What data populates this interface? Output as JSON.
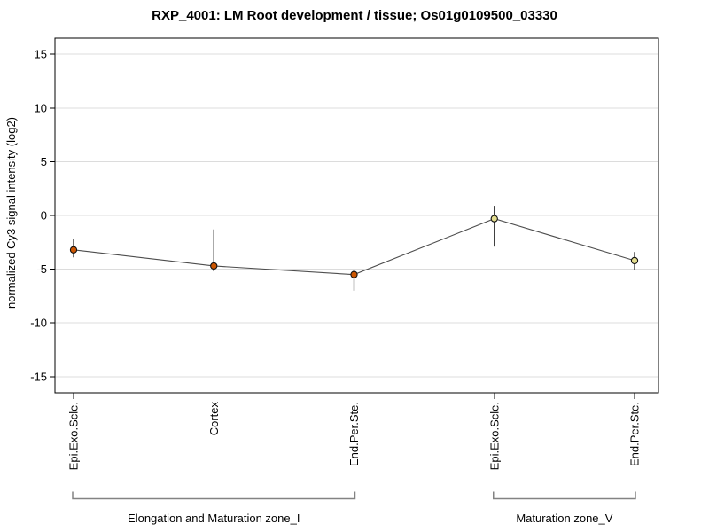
{
  "chart_data": {
    "type": "line",
    "title": "RXP_4001: LM Root development / tissue; Os01g0109500_03330",
    "ylabel": "normalized Cy3 signal intensity (log2)",
    "xlabel": "",
    "ylim": [
      -16.5,
      16.5
    ],
    "yticks": [
      15,
      10,
      5,
      0,
      -5,
      -10,
      -15
    ],
    "grid": true,
    "legend_position": "none",
    "categories": [
      "Epi.Exo.Scle.",
      "Cortex",
      "End.Per.Ste.",
      "Epi.Exo.Scle.",
      "End.Per.Ste."
    ],
    "series": [
      {
        "name": "Cy3 signal intensity",
        "values": [
          -3.2,
          -4.7,
          -5.5,
          -0.3,
          -4.2
        ],
        "err_low": [
          -3.9,
          -5.2,
          -7.0,
          -2.9,
          -5.1
        ],
        "err_high": [
          -2.2,
          -1.3,
          -5.1,
          0.9,
          -3.4
        ],
        "point_colors": [
          "#cc5500",
          "#cc5500",
          "#cc5500",
          "#e3dd8e",
          "#e3dd8e"
        ]
      }
    ],
    "groups": [
      {
        "label": "Elongation and Maturation zone_I",
        "from": 0,
        "to": 2
      },
      {
        "label": "Maturation zone_V",
        "from": 3,
        "to": 4
      }
    ]
  },
  "colors": {
    "background": "#ffffff",
    "gridline": "#dcdcdc",
    "frame": "#000000",
    "axis_tick": "#000000",
    "series_line": "#4d4d4d",
    "error_bar": "#2b2b2b",
    "point_outline": "#111111",
    "bracket": "#838383",
    "text": "#000000"
  }
}
